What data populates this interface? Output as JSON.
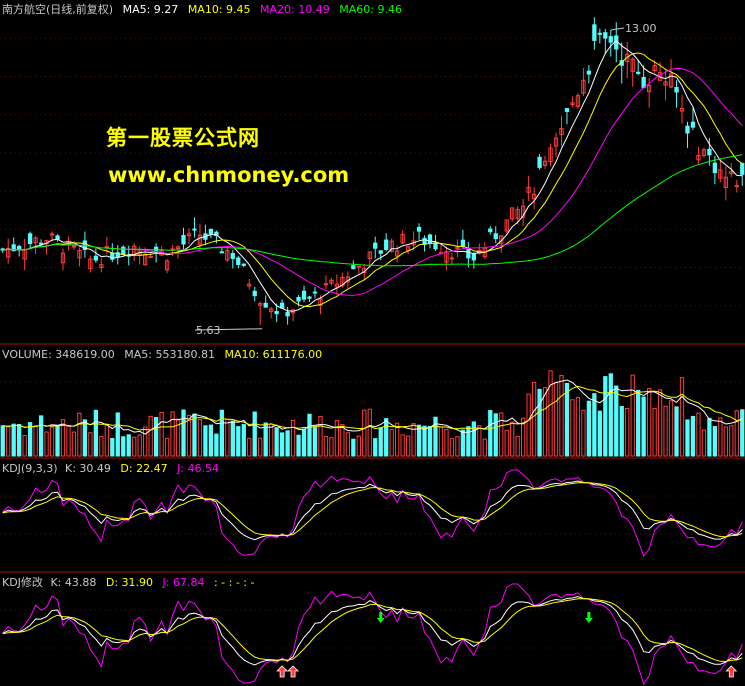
{
  "colors": {
    "up": "#ff3c3c",
    "down": "#54fcfc",
    "ma5": "#ffffff",
    "ma10": "#ffff00",
    "ma20": "#ff00ff",
    "ma60": "#00ff00",
    "divider": "#a01010",
    "grid": "#5a0a0a"
  },
  "price_header": {
    "name": "南方航空(日线,前复权)",
    "ma5": "MA5: 9.27",
    "ma10": "MA10: 9.45",
    "ma20": "MA20: 10.49",
    "ma60": "MA60: 9.46"
  },
  "watermark": {
    "line1": "第一股票公式网",
    "line2": "www.chnmoney.com"
  },
  "annotations": {
    "high": "13.00",
    "low": "5.63"
  },
  "volume_header": {
    "label": "VOLUME: 348619.00",
    "ma5": "MA5: 553180.81",
    "ma10": "MA10: 611176.00"
  },
  "kdj_header": {
    "label": "KDJ(9,3,3)",
    "k": "K: 30.49",
    "d": "D: 22.47",
    "j": "J: 46.54"
  },
  "kdj2_header": {
    "label": "KDJ修改",
    "k": "K: 43.88",
    "d": "D: 31.90",
    "j": "J: 67.84",
    "extra": ": - : - : -"
  },
  "chart_data": {
    "type": "candlestick",
    "title": "南方航空(日线,前复权)",
    "series_count": 136,
    "price_range": [
      5.3,
      13.3
    ],
    "price_low": 5.63,
    "price_high": 13.0,
    "close_path": [
      [
        0,
        7.5
      ],
      [
        8,
        7.8
      ],
      [
        16,
        7.25
      ],
      [
        24,
        7.6
      ],
      [
        30,
        7.4
      ],
      [
        36,
        7.9
      ],
      [
        42,
        7.4
      ],
      [
        47,
        6.3
      ],
      [
        51,
        5.9
      ],
      [
        55,
        6.2
      ],
      [
        59,
        6.5
      ],
      [
        64,
        7.0
      ],
      [
        70,
        7.6
      ],
      [
        76,
        7.8
      ],
      [
        82,
        7.5
      ],
      [
        86,
        7.3
      ],
      [
        90,
        7.9
      ],
      [
        95,
        8.6
      ],
      [
        100,
        9.8
      ],
      [
        104,
        11.2
      ],
      [
        108,
        12.5
      ],
      [
        111,
        12.8
      ],
      [
        114,
        12.2
      ],
      [
        117,
        11.8
      ],
      [
        120,
        12.0
      ],
      [
        123,
        11.4
      ],
      [
        126,
        10.3
      ],
      [
        129,
        9.8
      ],
      [
        132,
        9.3
      ],
      [
        135,
        9.27
      ]
    ],
    "indicators": [
      "MA5",
      "MA10",
      "MA20",
      "MA60",
      "VOLUME",
      "KDJ(9,3,3)",
      "KDJ修改"
    ],
    "volume_range": [
      0,
      1400000
    ]
  }
}
